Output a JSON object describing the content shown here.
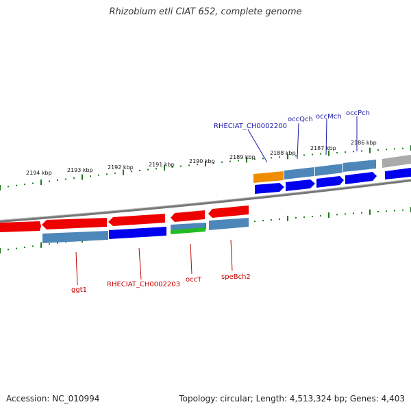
{
  "title": "Rhizobium etli CIAT 652, complete genome",
  "footer": {
    "accession": "Accession: NC_010994",
    "stats": "Topology: circular; Length: 4,513,324 bp; Genes: 4,403"
  },
  "scale_labels": [
    "2194 kbp",
    "2193 kbp",
    "2192 kbp",
    "2191 kbp",
    "2190 kbp",
    "2189 kbp",
    "2188 kbp",
    "2187 kbp",
    "2186 kbp"
  ],
  "gene_labels": {
    "top": [
      "RHECIAT_CH0002200",
      "occQch",
      "occMch",
      "occPch"
    ],
    "bottom": [
      "ggt1",
      "RHECIAT_CH0002203",
      "occT",
      "speBch2"
    ]
  },
  "colors": {
    "label_top": "#1a1aa8",
    "label_bottom": "#c00000",
    "tick": "#1a7a1a",
    "cds_forward": "#0000ee",
    "cds_reverse": "#ee0000",
    "gene": "#4d86b8",
    "orange": "#f08c00",
    "green": "#22bb22",
    "backbone": "#888888"
  }
}
